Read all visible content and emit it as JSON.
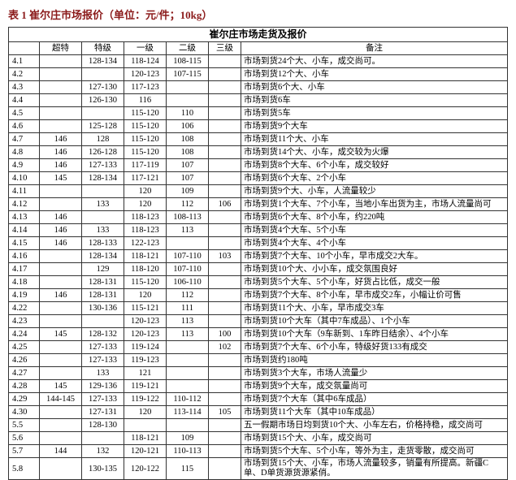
{
  "title": "表 1 崔尔庄市场报价（单位：元/件；10kg）",
  "title_color": "#8b1a1a",
  "border_color": "#333333",
  "banner": "崔尔庄市场走货及报价",
  "columns": [
    "",
    "超特",
    "特级",
    "一级",
    "二级",
    "三级",
    "备注"
  ],
  "rows": [
    {
      "date": "4.1",
      "g1": "",
      "g2": "128-134",
      "g3": "118-124",
      "g4": "108-115",
      "g5": "",
      "remark": "市场到货24个大、小车，成交尚可。"
    },
    {
      "date": "4.2",
      "g1": "",
      "g2": "",
      "g3": "120-123",
      "g4": "107-115",
      "g5": "",
      "remark": "市场到货12个大、小车"
    },
    {
      "date": "4.3",
      "g1": "",
      "g2": "127-130",
      "g3": "117-123",
      "g4": "",
      "g5": "",
      "remark": "市场到货6个大、小车"
    },
    {
      "date": "4.4",
      "g1": "",
      "g2": "126-130",
      "g3": "116",
      "g4": "",
      "g5": "",
      "remark": "市场到货6车"
    },
    {
      "date": "4.5",
      "g1": "",
      "g2": "",
      "g3": "115-120",
      "g4": "110",
      "g5": "",
      "remark": "市场到货5车"
    },
    {
      "date": "4.6",
      "g1": "",
      "g2": "125-128",
      "g3": "115-120",
      "g4": "106",
      "g5": "",
      "remark": "市场到货9个大车"
    },
    {
      "date": "4.7",
      "g1": "146",
      "g2": "128",
      "g3": "115-120",
      "g4": "108",
      "g5": "",
      "remark": "市场到货11个大、小车"
    },
    {
      "date": "4.8",
      "g1": "146",
      "g2": "126-128",
      "g3": "115-120",
      "g4": "108",
      "g5": "",
      "remark": "市场到货14个大、小车，成交较为火爆"
    },
    {
      "date": "4.9",
      "g1": "146",
      "g2": "127-133",
      "g3": "117-119",
      "g4": "107",
      "g5": "",
      "remark": "市场到货8个大车、6个小车，成交较好"
    },
    {
      "date": "4.10",
      "g1": "145",
      "g2": "128-134",
      "g3": "117-121",
      "g4": "107",
      "g5": "",
      "remark": "市场到货6个大车、2个小车"
    },
    {
      "date": "4.11",
      "g1": "",
      "g2": "",
      "g3": "120",
      "g4": "109",
      "g5": "",
      "remark": "市场到货9个大、小车，人流量较少"
    },
    {
      "date": "4.12",
      "g1": "",
      "g2": "133",
      "g3": "120",
      "g4": "112",
      "g5": "106",
      "remark": "市场到货1个大车、7个小车，当地小车出货为主，市场人流量尚可"
    },
    {
      "date": "4.13",
      "g1": "146",
      "g2": "",
      "g3": "118-123",
      "g4": "108-113",
      "g5": "",
      "remark": "市场到货6个大车、8个小车，约220吨"
    },
    {
      "date": "4.14",
      "g1": "146",
      "g2": "133",
      "g3": "118-123",
      "g4": "113",
      "g5": "",
      "remark": "市场到货4个大车、5个小车"
    },
    {
      "date": "4.15",
      "g1": "146",
      "g2": "128-133",
      "g3": "122-123",
      "g4": "",
      "g5": "",
      "remark": "市场到货4个大车、4个小车"
    },
    {
      "date": "4.16",
      "g1": "",
      "g2": "128-134",
      "g3": "118-121",
      "g4": "107-110",
      "g5": "103",
      "remark": "市场到货7个大车、10个小车，早市成交2大车。"
    },
    {
      "date": "4.17",
      "g1": "",
      "g2": "129",
      "g3": "118-120",
      "g4": "107-110",
      "g5": "",
      "remark": "市场到货10个大、小小车，成交氛围良好"
    },
    {
      "date": "4.18",
      "g1": "",
      "g2": "128-131",
      "g3": "115-120",
      "g4": "106-110",
      "g5": "",
      "remark": "市场到货5个大车、5个小车，好货占比低，成交一般"
    },
    {
      "date": "4.19",
      "g1": "146",
      "g2": "128-131",
      "g3": "120",
      "g4": "112",
      "g5": "",
      "remark": "市场到货7个大车、8个小车，早市成交2车，小幅让价可售"
    },
    {
      "date": "4.22",
      "g1": "",
      "g2": "130-136",
      "g3": "115-121",
      "g4": "111",
      "g5": "",
      "remark": "市场到货11个大、小车，早市成交3车"
    },
    {
      "date": "4.23",
      "g1": "",
      "g2": "",
      "g3": "120-123",
      "g4": "113",
      "g5": "",
      "remark": "市场到货10个大车（其中7车成品）、1个小车"
    },
    {
      "date": "4.24",
      "g1": "145",
      "g2": "128-132",
      "g3": "120-123",
      "g4": "113",
      "g5": "100",
      "remark": "市场到货10个大车（9车新到、1车昨日结余）、4个小车"
    },
    {
      "date": "4.25",
      "g1": "",
      "g2": "127-133",
      "g3": "119-124",
      "g4": "",
      "g5": "102",
      "remark": "市场到货7个大车、6个小车，特级好货133有成交"
    },
    {
      "date": "4.26",
      "g1": "",
      "g2": "127-133",
      "g3": "119-123",
      "g4": "",
      "g5": "",
      "remark": "市场到货约180吨"
    },
    {
      "date": "4.27",
      "g1": "",
      "g2": "133",
      "g3": "121",
      "g4": "",
      "g5": "",
      "remark": "市场到货3个大车，市场人流量少"
    },
    {
      "date": "4.28",
      "g1": "145",
      "g2": "129-136",
      "g3": "119-121",
      "g4": "",
      "g5": "",
      "remark": "市场到货9个大车，成交氛量尚可"
    },
    {
      "date": "4.29",
      "g1": "144-145",
      "g2": "127-133",
      "g3": "119-122",
      "g4": "110-112",
      "g5": "",
      "remark": "市场到货7个大车（其中6车成品）"
    },
    {
      "date": "4.30",
      "g1": "",
      "g2": "127-131",
      "g3": "120",
      "g4": "113-114",
      "g5": "105",
      "remark": "市场到货11个大车（其中10车成品）"
    },
    {
      "date": "5.5",
      "g1": "",
      "g2": "128-130",
      "g3": "",
      "g4": "",
      "g5": "",
      "remark": "五一假期市场日均到货10个大、小车左右，价格持稳，成交尚可"
    },
    {
      "date": "5.6",
      "g1": "",
      "g2": "",
      "g3": "118-121",
      "g4": "109",
      "g5": "",
      "remark": "市场到货15个大、小车，成交尚可"
    },
    {
      "date": "5.7",
      "g1": "144",
      "g2": "132",
      "g3": "120-121",
      "g4": "110-113",
      "g5": "",
      "remark": "市场到货5个大车、5个小车，等外为主，走货零散，成交尚可"
    },
    {
      "date": "5.8",
      "g1": "",
      "g2": "130-135",
      "g3": "120-122",
      "g4": "115",
      "g5": "",
      "remark": "市场到货15个大、小车，市场人流量较多，销量有所提高。新疆C单、D单货源货源紧俏。"
    }
  ]
}
